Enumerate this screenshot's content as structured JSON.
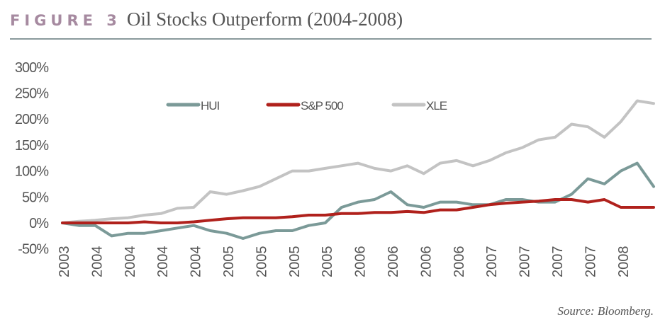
{
  "header": {
    "figure_label": "FIGURE 3",
    "title": "Oil Stocks Outperform (2004-2008)"
  },
  "source": "Source: Bloomberg.",
  "chart_data": {
    "type": "line",
    "title": "Oil Stocks Outperform (2004-2008)",
    "xlabel": "",
    "ylabel": "",
    "ylim": [
      -50,
      300
    ],
    "yticks": [
      "300%",
      "250%",
      "200%",
      "150%",
      "100%",
      "50%",
      "0%",
      "-50%"
    ],
    "ytick_values": [
      300,
      250,
      200,
      150,
      100,
      50,
      0,
      -50
    ],
    "xticks": [
      "2003",
      "2004",
      "2004",
      "2004",
      "2004",
      "2005",
      "2005",
      "2005",
      "2005",
      "2006",
      "2006",
      "2006",
      "2006",
      "2007",
      "2007",
      "2007",
      "2007",
      "2008"
    ],
    "grid": false,
    "legend_position": "top-center",
    "series": [
      {
        "name": "XLE",
        "color": "#c3c3c3",
        "values": [
          0,
          3,
          5,
          8,
          10,
          15,
          18,
          28,
          30,
          60,
          55,
          62,
          70,
          85,
          100,
          100,
          105,
          110,
          115,
          105,
          100,
          110,
          95,
          115,
          120,
          110,
          120,
          135,
          145,
          160,
          165,
          190,
          185,
          165,
          195,
          235,
          230
        ]
      },
      {
        "name": "HUI",
        "color": "#7b9a98",
        "values": [
          0,
          -5,
          -5,
          -25,
          -20,
          -20,
          -15,
          -10,
          -5,
          -15,
          -20,
          -30,
          -20,
          -15,
          -15,
          -5,
          0,
          30,
          40,
          45,
          60,
          35,
          30,
          40,
          40,
          35,
          35,
          45,
          45,
          40,
          40,
          55,
          85,
          75,
          100,
          115,
          70
        ]
      },
      {
        "name": "S&P 500",
        "color": "#b0211c",
        "values": [
          0,
          0,
          0,
          0,
          0,
          2,
          0,
          0,
          2,
          5,
          8,
          10,
          10,
          10,
          12,
          15,
          15,
          18,
          18,
          20,
          20,
          22,
          20,
          25,
          25,
          30,
          35,
          38,
          40,
          42,
          45,
          45,
          40,
          45,
          30,
          30,
          30
        ]
      }
    ],
    "legend_order": [
      "HUI",
      "S&P 500",
      "XLE"
    ]
  }
}
